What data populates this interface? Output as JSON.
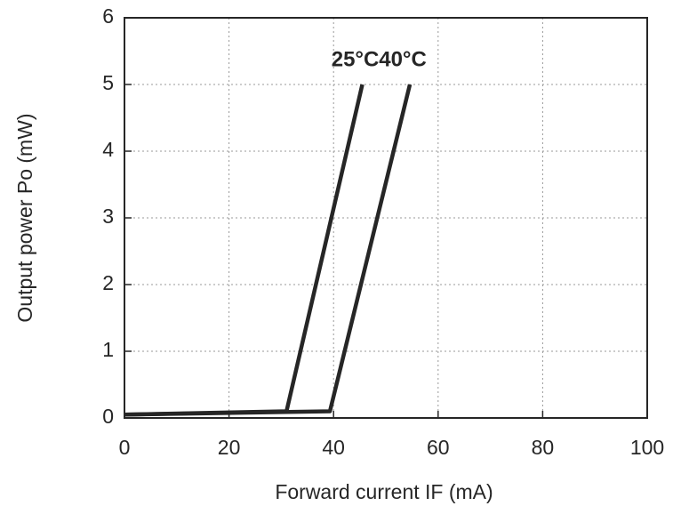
{
  "chart_data": {
    "type": "line",
    "x_label": "Forward current IF (mA)",
    "y_label": "Output power  Po (mW)",
    "series": [
      {
        "name": "25°C",
        "color": "#262626",
        "x": [
          0,
          31,
          45.5
        ],
        "values": [
          0.05,
          0.1,
          5
        ]
      },
      {
        "name": "40°C",
        "color": "#262626",
        "x": [
          0,
          39.3,
          54.6
        ],
        "values": [
          0.05,
          0.1,
          5
        ]
      }
    ],
    "xlim": [
      0,
      100
    ],
    "xticks": [
      0,
      20,
      40,
      60,
      80,
      100
    ],
    "ylim": [
      0,
      6
    ],
    "yticks": [
      0,
      1,
      2,
      3,
      4,
      5,
      6
    ],
    "grid": true
  }
}
